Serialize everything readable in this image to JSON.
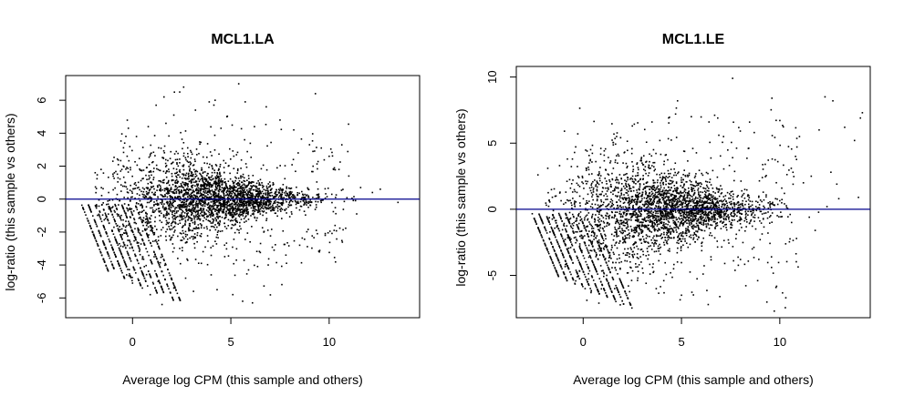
{
  "chart_data": [
    {
      "type": "scatter",
      "title": "MCL1.LA",
      "xlabel": "Average log CPM (this sample and others)",
      "ylabel": "log-ratio (this sample vs others)",
      "xlim": [
        -3.4,
        14.6
      ],
      "ylim": [
        -7.2,
        7.5
      ],
      "xticks": [
        0,
        5,
        10
      ],
      "yticks": [
        -6,
        -4,
        -2,
        0,
        2,
        4,
        6
      ],
      "grid": false,
      "reference_line": {
        "y": 0,
        "color": "#00008b"
      },
      "point_color": "#000000",
      "points": [
        [
          2.6,
          6.8
        ],
        [
          2.4,
          6.5
        ],
        [
          5.4,
          7.0
        ],
        [
          4.2,
          6.0
        ],
        [
          9.3,
          6.4
        ],
        [
          3.9,
          5.9
        ],
        [
          1.6,
          6.2
        ],
        [
          6.8,
          5.6
        ],
        [
          1.2,
          5.7
        ],
        [
          2.1,
          5.1
        ],
        [
          3.2,
          5.4
        ],
        [
          4.8,
          5.0
        ],
        [
          7.5,
          4.8
        ],
        [
          8.2,
          4.2
        ],
        [
          9.0,
          3.3
        ],
        [
          9.6,
          3.1
        ],
        [
          10.0,
          2.6
        ],
        [
          10.5,
          1.8
        ],
        [
          11.0,
          1.4
        ],
        [
          11.6,
          0.7
        ],
        [
          12.2,
          0.4
        ],
        [
          12.6,
          0.6
        ],
        [
          13.5,
          -0.2
        ],
        [
          11.4,
          -0.9
        ],
        [
          10.3,
          -1.6
        ],
        [
          9.8,
          -2.2
        ],
        [
          9.4,
          -2.1
        ],
        [
          8.5,
          -2.8
        ],
        [
          7.8,
          -3.4
        ],
        [
          6.9,
          -4.0
        ],
        [
          6.1,
          -6.3
        ],
        [
          5.6,
          -6.2
        ],
        [
          5.1,
          -5.8
        ],
        [
          4.3,
          -5.5
        ],
        [
          3.1,
          -5.6
        ],
        [
          2.1,
          -5.4
        ],
        [
          1.5,
          -6.4
        ],
        [
          0.9,
          -5.8
        ],
        [
          0.5,
          -5.4
        ],
        [
          0.0,
          -5.1
        ],
        [
          -0.3,
          -4.6
        ],
        [
          1.3,
          -5.0
        ],
        [
          2.7,
          -4.8
        ],
        [
          4.0,
          -4.6
        ],
        [
          5.9,
          -4.3
        ],
        [
          3.5,
          -3.9
        ],
        [
          2.3,
          -3.6
        ],
        [
          1.1,
          -3.5
        ],
        [
          0.6,
          -4.1
        ],
        [
          7.2,
          -3.1
        ],
        [
          0.2,
          3.8
        ],
        [
          -0.4,
          3.4
        ],
        [
          0.8,
          4.4
        ],
        [
          1.7,
          4.6
        ],
        [
          -1.0,
          2.3
        ],
        [
          -1.6,
          1.8
        ],
        [
          -1.9,
          1.6
        ],
        [
          6.2,
          4.4
        ],
        [
          5.7,
          3.6
        ],
        [
          4.5,
          4.3
        ]
      ]
    },
    {
      "type": "scatter",
      "title": "MCL1.LE",
      "xlabel": "Average log CPM (this sample and others)",
      "ylabel": "log-ratio (this sample vs others)",
      "xlim": [
        -3.4,
        14.6
      ],
      "ylim": [
        -8.2,
        10.8
      ],
      "xticks": [
        0,
        5,
        10
      ],
      "yticks": [
        -5,
        0,
        5,
        10
      ],
      "grid": false,
      "reference_line": {
        "y": 0,
        "color": "#00008b"
      },
      "point_color": "#000000",
      "points": [
        [
          7.6,
          9.9
        ],
        [
          9.6,
          8.4
        ],
        [
          12.3,
          8.5
        ],
        [
          12.7,
          8.2
        ],
        [
          14.2,
          7.3
        ],
        [
          14.1,
          6.9
        ],
        [
          13.3,
          6.2
        ],
        [
          12.0,
          6.0
        ],
        [
          11.0,
          5.5
        ],
        [
          13.8,
          5.2
        ],
        [
          12.6,
          2.8
        ],
        [
          11.2,
          2.0
        ],
        [
          10.1,
          1.6
        ],
        [
          13.0,
          0.8
        ],
        [
          14.0,
          0.9
        ],
        [
          12.4,
          0.2
        ],
        [
          11.5,
          -0.6
        ],
        [
          10.6,
          -1.0
        ],
        [
          9.0,
          -2.3
        ],
        [
          8.6,
          -3.0
        ],
        [
          8.0,
          -3.8
        ],
        [
          7.2,
          -4.1
        ],
        [
          6.1,
          -4.9
        ],
        [
          5.0,
          -6.5
        ],
        [
          4.1,
          -5.4
        ],
        [
          3.2,
          -5.6
        ],
        [
          2.3,
          -5.8
        ],
        [
          1.6,
          -6.0
        ],
        [
          0.8,
          -7.1
        ],
        [
          0.4,
          -6.3
        ],
        [
          0.1,
          -6.0
        ],
        [
          -0.3,
          -5.1
        ],
        [
          1.2,
          -5.0
        ],
        [
          2.8,
          -4.7
        ],
        [
          4.6,
          -4.5
        ],
        [
          6.5,
          -3.6
        ],
        [
          7.6,
          3.9
        ],
        [
          8.4,
          4.6
        ],
        [
          6.4,
          6.6
        ],
        [
          5.5,
          7.0
        ],
        [
          4.7,
          7.2
        ],
        [
          4.8,
          8.2
        ],
        [
          3.5,
          6.6
        ],
        [
          2.5,
          6.3
        ],
        [
          1.7,
          5.5
        ],
        [
          0.9,
          4.6
        ],
        [
          0.2,
          4.4
        ],
        [
          -0.8,
          3.8
        ],
        [
          -1.2,
          3.3
        ],
        [
          -1.8,
          3.1
        ],
        [
          -2.3,
          2.6
        ],
        [
          9.9,
          3.6
        ],
        [
          10.8,
          4.0
        ],
        [
          11.6,
          2.5
        ],
        [
          12.9,
          1.9
        ],
        [
          11.8,
          -1.6
        ],
        [
          9.4,
          -1.8
        ],
        [
          8.7,
          5.8
        ],
        [
          6.9,
          5.6
        ],
        [
          3.9,
          5.2
        ]
      ]
    }
  ]
}
